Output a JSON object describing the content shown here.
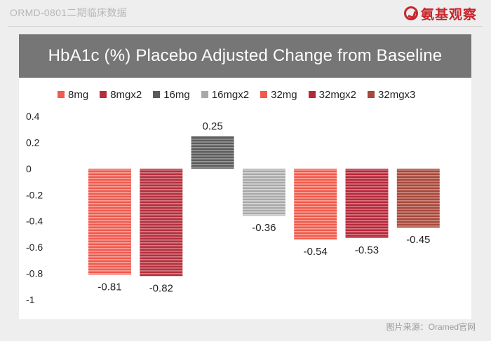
{
  "header": {
    "left_text": "ORMD-0801二期临床数据",
    "logo_text": "氨基观察",
    "logo_icon": "red-ring-arrow-icon",
    "logo_color": "#c9252c"
  },
  "footer": {
    "source_text": "图片来源：Oramed官网"
  },
  "chart_data": {
    "type": "bar",
    "title": "HbA1c (%) Placebo Adjusted Change from Baseline",
    "xlabel": "",
    "ylabel": "",
    "ylim": [
      -1,
      0.4
    ],
    "yticks": [
      0.4,
      0.2,
      0,
      -0.2,
      -0.4,
      -0.6,
      -0.8,
      -1
    ],
    "ytick_labels": [
      "0.4",
      "0.2",
      "0",
      "-0.2",
      "-0.4",
      "-0.6",
      "-0.8",
      "-1"
    ],
    "grid": false,
    "legend_position": "top",
    "series": [
      {
        "name": "8mg",
        "value": -0.81,
        "label": "-0.81",
        "color": "#f05a4f",
        "stripe": "#f9b3ab"
      },
      {
        "name": "8mgx2",
        "value": -0.82,
        "label": "-0.82",
        "color": "#b3303d",
        "stripe": "#dc8f98"
      },
      {
        "name": "16mg",
        "value": 0.25,
        "label": "0.25",
        "color": "#5b5b5b",
        "stripe": "#a9a9a9"
      },
      {
        "name": "16mgx2",
        "value": -0.36,
        "label": "-0.36",
        "color": "#a8a8a8",
        "stripe": "#e2e2e2"
      },
      {
        "name": "32mg",
        "value": -0.54,
        "label": "-0.54",
        "color": "#f2594a",
        "stripe": "#fab7ae"
      },
      {
        "name": "32mgx2",
        "value": -0.53,
        "label": "-0.53",
        "color": "#b4283a",
        "stripe": "#e08c96"
      },
      {
        "name": "32mgx3",
        "value": -0.45,
        "label": "-0.45",
        "color": "#a8473a",
        "stripe": "#d59e94"
      }
    ]
  }
}
